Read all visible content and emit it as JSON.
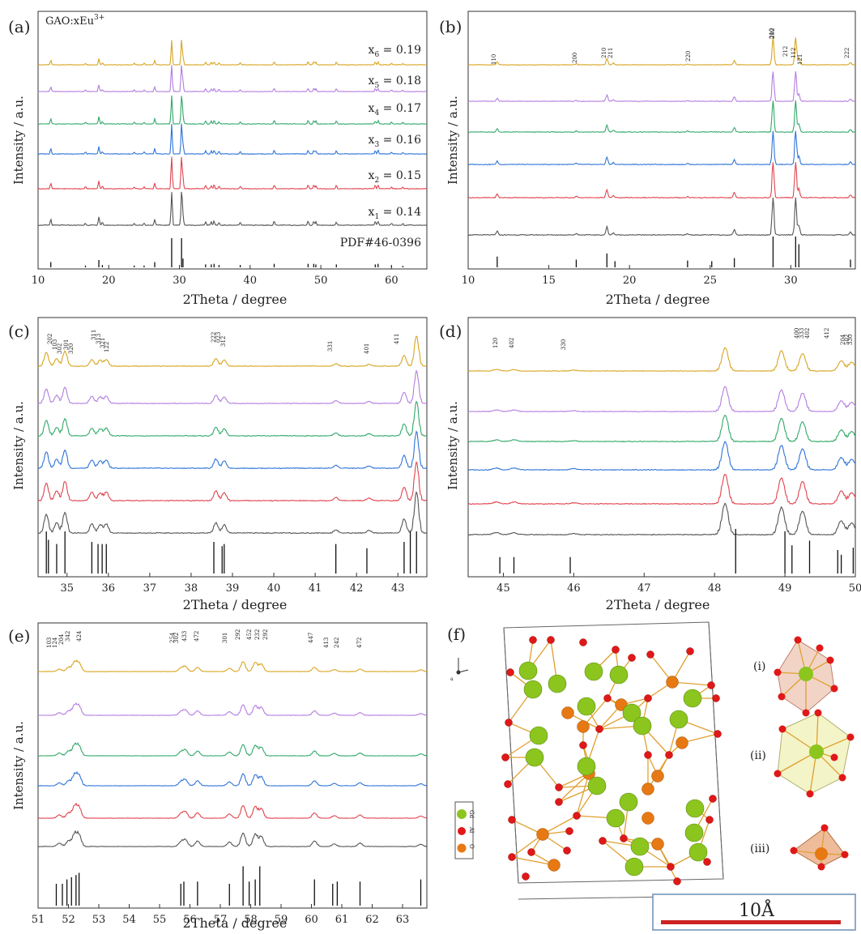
{
  "colors": {
    "series": [
      "#d8a520",
      "#b27de0",
      "#32a86a",
      "#2f74d8",
      "#e0444e",
      "#555555"
    ],
    "reference": "#111111",
    "green_atom": "#8bc51e",
    "red_atom": "#e01818",
    "orange_atom": "#e67914",
    "bond": "#e0a030",
    "scale_bar": "#cc2222"
  },
  "panels": {
    "a": {
      "label": "(a)",
      "composition": "GAO:xEu",
      "composition_sup": "3+",
      "ylabel": "Intensity / a.u.",
      "xlabel": "2Theta / degree",
      "xticks": [
        "10",
        "20",
        "30",
        "40",
        "50",
        "60"
      ],
      "series_labels": [
        {
          "x": "x",
          "sub": "6",
          "val": " = 0.19"
        },
        {
          "x": "x",
          "sub": "5",
          "val": " = 0.18"
        },
        {
          "x": "x",
          "sub": "4",
          "val": " = 0.17"
        },
        {
          "x": "x",
          "sub": "3",
          "val": " = 0.16"
        },
        {
          "x": "x",
          "sub": "2",
          "val": " = 0.15"
        },
        {
          "x": "x",
          "sub": "1",
          "val": " = 0.14"
        }
      ],
      "reference_label": "PDF#46-0396"
    },
    "b": {
      "label": "(b)",
      "ylabel": "Intensity / a.u.",
      "xlabel": "2Theta / degree",
      "xticks": [
        "10",
        "15",
        "20",
        "25",
        "30"
      ],
      "hkl": [
        "110",
        "200",
        "210",
        "211",
        "220",
        "310",
        "202",
        "212",
        "112",
        "121",
        "222"
      ]
    },
    "c": {
      "label": "(c)",
      "ylabel": "Intensity / a.u.",
      "xlabel": "2Theta / degree",
      "xticks": [
        "35",
        "36",
        "37",
        "38",
        "39",
        "40",
        "41",
        "42",
        "43"
      ],
      "hkl": [
        "202",
        "103",
        "302",
        "301",
        "320",
        "311",
        "313",
        "321",
        "122",
        "222",
        "023",
        "312",
        "331",
        "401",
        "411"
      ]
    },
    "d": {
      "label": "(d)",
      "ylabel": "Intensity / a.u.",
      "xlabel": "2Theta / degree",
      "xticks": [
        "45",
        "46",
        "47",
        "48",
        "49",
        "50"
      ],
      "hkl": [
        "120",
        "402",
        "330",
        "400",
        "333",
        "402",
        "412",
        "204",
        "502",
        "330"
      ]
    },
    "e": {
      "label": "(e)",
      "ylabel": "Intensity / a.u.",
      "xlabel": "2Theta / degree",
      "xticks": [
        "51",
        "52",
        "53",
        "54",
        "55",
        "56",
        "57",
        "58",
        "59",
        "60",
        "61",
        "62",
        "63"
      ],
      "hkl": [
        "103",
        "124",
        "204",
        "342",
        "424",
        "254",
        "302",
        "433",
        "472",
        "301",
        "292",
        "452",
        "232",
        "292",
        "447",
        "413",
        "242",
        "472"
      ]
    },
    "f": {
      "label": "(f)",
      "legend": [
        "Gd",
        "Al",
        "O"
      ],
      "polyhedra": [
        "(i)",
        "(ii)",
        "(iii)"
      ],
      "scale": "10Å"
    }
  },
  "chart_data": [
    {
      "panel": "a",
      "type": "line",
      "title": "",
      "xlabel": "2Theta / degree",
      "ylabel": "Intensity / a.u.",
      "xlim": [
        10,
        65
      ],
      "series": [
        {
          "name": "x6 = 0.19"
        },
        {
          "name": "x5 = 0.18"
        },
        {
          "name": "x4 = 0.17"
        },
        {
          "name": "x3 = 0.16"
        },
        {
          "name": "x2 = 0.15"
        },
        {
          "name": "x1 = 0.14"
        },
        {
          "name": "PDF#46-0396"
        }
      ],
      "peaks": [
        {
          "x": 11.8,
          "h": 0.18
        },
        {
          "x": 16.7,
          "h": 0.06
        },
        {
          "x": 18.6,
          "h": 0.25
        },
        {
          "x": 19.1,
          "h": 0.08
        },
        {
          "x": 23.6,
          "h": 0.06
        },
        {
          "x": 25.0,
          "h": 0.06
        },
        {
          "x": 26.5,
          "h": 0.18
        },
        {
          "x": 28.9,
          "h": 1.0
        },
        {
          "x": 30.3,
          "h": 1.0
        },
        {
          "x": 30.5,
          "h": 0.3
        },
        {
          "x": 33.7,
          "h": 0.1
        },
        {
          "x": 34.5,
          "h": 0.1
        },
        {
          "x": 34.9,
          "h": 0.12
        },
        {
          "x": 35.6,
          "h": 0.08
        },
        {
          "x": 38.6,
          "h": 0.08
        },
        {
          "x": 43.4,
          "h": 0.12
        },
        {
          "x": 48.2,
          "h": 0.12
        },
        {
          "x": 49.0,
          "h": 0.12
        },
        {
          "x": 49.3,
          "h": 0.1
        },
        {
          "x": 52.2,
          "h": 0.1
        },
        {
          "x": 57.7,
          "h": 0.1
        },
        {
          "x": 58.1,
          "h": 0.12
        },
        {
          "x": 60.0,
          "h": 0.06
        },
        {
          "x": 61.6,
          "h": 0.05
        }
      ]
    },
    {
      "panel": "b",
      "type": "line",
      "xlim": [
        10,
        34
      ],
      "xlabel": "2Theta / degree",
      "ylabel": "Intensity / a.u.",
      "peaks": [
        {
          "x": 11.8,
          "h": 0.1
        },
        {
          "x": 16.7,
          "h": 0.04
        },
        {
          "x": 18.6,
          "h": 0.22
        },
        {
          "x": 19.0,
          "h": 0.06
        },
        {
          "x": 23.6,
          "h": 0.03
        },
        {
          "x": 26.5,
          "h": 0.15
        },
        {
          "x": 28.9,
          "h": 1.0
        },
        {
          "x": 30.3,
          "h": 1.0
        },
        {
          "x": 30.5,
          "h": 0.25
        },
        {
          "x": 33.7,
          "h": 0.08
        }
      ],
      "reference": [
        {
          "x": 11.8,
          "h": 0.35
        },
        {
          "x": 16.7,
          "h": 0.25
        },
        {
          "x": 18.6,
          "h": 0.45
        },
        {
          "x": 19.1,
          "h": 0.2
        },
        {
          "x": 23.6,
          "h": 0.22
        },
        {
          "x": 25.1,
          "h": 0.2
        },
        {
          "x": 26.5,
          "h": 0.3
        },
        {
          "x": 28.9,
          "h": 1.0
        },
        {
          "x": 30.3,
          "h": 1.0
        },
        {
          "x": 30.5,
          "h": 0.75
        },
        {
          "x": 33.7,
          "h": 0.25
        }
      ]
    },
    {
      "panel": "c",
      "type": "line",
      "xlim": [
        34.3,
        43.7
      ],
      "xlabel": "2Theta / degree",
      "ylabel": "Intensity / a.u.",
      "peaks": [
        {
          "x": 34.5,
          "h": 0.45
        },
        {
          "x": 34.75,
          "h": 0.25
        },
        {
          "x": 34.95,
          "h": 0.5
        },
        {
          "x": 35.6,
          "h": 0.22
        },
        {
          "x": 35.8,
          "h": 0.2
        },
        {
          "x": 35.95,
          "h": 0.22
        },
        {
          "x": 38.6,
          "h": 0.25
        },
        {
          "x": 38.8,
          "h": 0.2
        },
        {
          "x": 41.5,
          "h": 0.08
        },
        {
          "x": 42.3,
          "h": 0.06
        },
        {
          "x": 43.15,
          "h": 0.35
        },
        {
          "x": 43.45,
          "h": 1.0
        }
      ],
      "reference": [
        {
          "x": 34.5,
          "h": 1.0
        },
        {
          "x": 34.55,
          "h": 0.8
        },
        {
          "x": 34.75,
          "h": 0.7
        },
        {
          "x": 34.95,
          "h": 1.0
        },
        {
          "x": 35.6,
          "h": 0.75
        },
        {
          "x": 35.75,
          "h": 0.7
        },
        {
          "x": 35.85,
          "h": 0.7
        },
        {
          "x": 35.95,
          "h": 0.7
        },
        {
          "x": 38.55,
          "h": 0.75
        },
        {
          "x": 38.75,
          "h": 0.65
        },
        {
          "x": 38.8,
          "h": 0.7
        },
        {
          "x": 41.5,
          "h": 0.7
        },
        {
          "x": 42.25,
          "h": 0.6
        },
        {
          "x": 43.15,
          "h": 0.75
        },
        {
          "x": 43.3,
          "h": 1.0
        },
        {
          "x": 43.45,
          "h": 1.0
        }
      ]
    },
    {
      "panel": "d",
      "type": "line",
      "xlim": [
        44.5,
        50
      ],
      "xlabel": "2Theta / degree",
      "ylabel": "Intensity / a.u.",
      "peaks": [
        {
          "x": 44.9,
          "h": 0.05
        },
        {
          "x": 45.15,
          "h": 0.05
        },
        {
          "x": 46.0,
          "h": 0.03
        },
        {
          "x": 48.15,
          "h": 0.8
        },
        {
          "x": 48.95,
          "h": 0.7
        },
        {
          "x": 49.25,
          "h": 0.6
        },
        {
          "x": 49.8,
          "h": 0.35
        },
        {
          "x": 49.95,
          "h": 0.3
        }
      ],
      "reference": [
        {
          "x": 44.95,
          "h": 0.35
        },
        {
          "x": 45.15,
          "h": 0.35
        },
        {
          "x": 45.95,
          "h": 0.35
        },
        {
          "x": 48.3,
          "h": 0.95
        },
        {
          "x": 49.0,
          "h": 0.9
        },
        {
          "x": 49.1,
          "h": 0.6
        },
        {
          "x": 49.35,
          "h": 0.7
        },
        {
          "x": 49.75,
          "h": 0.5
        },
        {
          "x": 49.8,
          "h": 0.4
        },
        {
          "x": 49.97,
          "h": 0.55
        }
      ]
    },
    {
      "panel": "e",
      "type": "line",
      "xlim": [
        51,
        63.8
      ],
      "xlabel": "2Theta / degree",
      "ylabel": "Intensity / a.u.",
      "peaks": [
        {
          "x": 51.7,
          "h": 0.15
        },
        {
          "x": 52.0,
          "h": 0.25
        },
        {
          "x": 52.2,
          "h": 0.55
        },
        {
          "x": 52.35,
          "h": 0.5
        },
        {
          "x": 55.7,
          "h": 0.2
        },
        {
          "x": 55.85,
          "h": 0.3
        },
        {
          "x": 56.25,
          "h": 0.25
        },
        {
          "x": 57.3,
          "h": 0.2
        },
        {
          "x": 57.75,
          "h": 0.6
        },
        {
          "x": 58.15,
          "h": 0.55
        },
        {
          "x": 58.35,
          "h": 0.45
        },
        {
          "x": 60.1,
          "h": 0.25
        },
        {
          "x": 60.75,
          "h": 0.12
        },
        {
          "x": 61.6,
          "h": 0.15
        },
        {
          "x": 63.6,
          "h": 0.1
        }
      ],
      "reference": [
        {
          "x": 51.6,
          "h": 0.5
        },
        {
          "x": 51.8,
          "h": 0.5
        },
        {
          "x": 51.95,
          "h": 0.6
        },
        {
          "x": 52.1,
          "h": 0.65
        },
        {
          "x": 52.25,
          "h": 0.7
        },
        {
          "x": 52.35,
          "h": 0.75
        },
        {
          "x": 55.7,
          "h": 0.5
        },
        {
          "x": 55.8,
          "h": 0.55
        },
        {
          "x": 56.25,
          "h": 0.55
        },
        {
          "x": 57.3,
          "h": 0.5
        },
        {
          "x": 57.75,
          "h": 0.9
        },
        {
          "x": 57.95,
          "h": 0.55
        },
        {
          "x": 58.15,
          "h": 0.6
        },
        {
          "x": 58.3,
          "h": 0.9
        },
        {
          "x": 60.1,
          "h": 0.6
        },
        {
          "x": 60.7,
          "h": 0.5
        },
        {
          "x": 60.85,
          "h": 0.55
        },
        {
          "x": 61.6,
          "h": 0.55
        },
        {
          "x": 63.6,
          "h": 0.6
        }
      ]
    }
  ]
}
